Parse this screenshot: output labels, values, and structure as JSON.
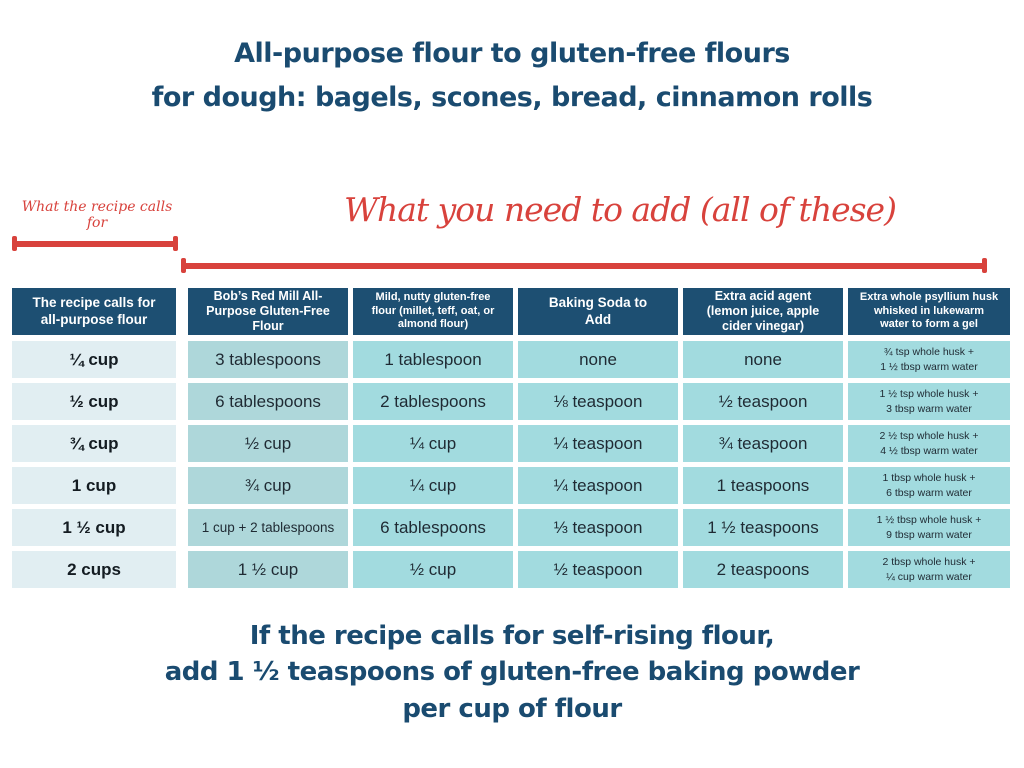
{
  "title": {
    "line1": "All-purpose flour to gluten-free flours",
    "line2": "for dough: bagels, scones, bread, cinnamon rolls"
  },
  "annotations": {
    "left_label": "What the recipe calls for",
    "right_label": "What you need to add (all of these)"
  },
  "table": {
    "headers": [
      "The recipe calls for\nall-purpose flour",
      "Bob’s Red Mill All-\nPurpose Gluten-Free\nFlour",
      "Mild, nutty gluten-free\nflour (millet, teff, oat, or\nalmond flour)",
      "Baking Soda to\nAdd",
      "Extra acid agent\n(lemon juice, apple\ncider vinegar)",
      "Extra whole psyllium husk\nwhisked in lukewarm\nwater to form a gel"
    ],
    "rows": [
      [
        "¼ cup",
        "3 tablespoons",
        "1 tablespoon",
        "none",
        "none",
        "¾ tsp whole husk +\n1 ½ tbsp warm water"
      ],
      [
        "½ cup",
        "6 tablespoons",
        "2 tablespoons",
        "⅛ teaspoon",
        "½ teaspoon",
        "1 ½ tsp whole husk +\n3 tbsp warm water"
      ],
      [
        "¾ cup",
        "½ cup",
        "¼ cup",
        "¼ teaspoon",
        "¾ teaspoon",
        "2 ½ tsp whole husk +\n4 ½ tbsp warm water"
      ],
      [
        "1 cup",
        "¾ cup",
        "¼ cup",
        "¼ teaspoon",
        "1 teaspoons",
        "1 tbsp whole husk +\n6 tbsp warm water"
      ],
      [
        "1 ½ cup",
        "1 cup + 2 tablespoons",
        "6 tablespoons",
        "⅓ teaspoon",
        "1 ½ teaspoons",
        "1 ½ tbsp whole husk +\n9 tbsp warm water"
      ],
      [
        "2 cups",
        "1 ½ cup",
        "½ cup",
        "½ teaspoon",
        "2 teaspoons",
        "2 tbsp whole husk +\n¼ cup warm water"
      ]
    ]
  },
  "footer": {
    "line1": "If the recipe calls for self-rising flour,",
    "line2": "add 1 ½ teaspoons of gluten-free baking powder",
    "line3": "per cup of flour"
  },
  "colors": {
    "heading_text": "#1a4b70",
    "accent_red": "#d8423c",
    "header_cell_bg": "#1d4f72",
    "first_col_bg": "#e1eef2",
    "bobs_col_bg": "#aed7da",
    "add_col_bg": "#a2dbdf"
  }
}
